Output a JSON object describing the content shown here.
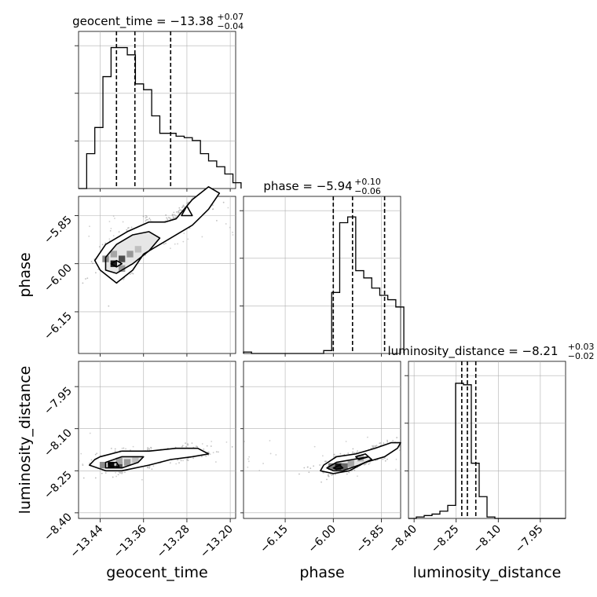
{
  "chart_data": {
    "type": "corner",
    "parameters": [
      {
        "name": "geocent_time",
        "ticks": [
          -13.44,
          -13.36,
          -13.28,
          -13.2
        ],
        "tick_labels": [
          "−13.44",
          "−13.36",
          "−13.28",
          "−13.20"
        ],
        "range": [
          -13.48,
          -13.19
        ],
        "title_prefix": "geocent_time = −13.38",
        "title_sup": "+0.07",
        "title_sub": "−0.04",
        "quantiles": [
          -13.41,
          -13.376,
          -13.31
        ],
        "hist_x": [
          -13.48,
          -13.465,
          -13.45,
          -13.435,
          -13.42,
          -13.405,
          -13.39,
          -13.375,
          -13.36,
          -13.345,
          -13.33,
          -13.315,
          -13.3,
          -13.285,
          -13.27,
          -13.255,
          -13.24,
          -13.225,
          -13.21,
          -13.195
        ],
        "hist_counts": [
          0,
          0.24,
          0.42,
          0.77,
          0.97,
          0.97,
          0.92,
          0.72,
          0.68,
          0.5,
          0.38,
          0.38,
          0.36,
          0.35,
          0.33,
          0.24,
          0.19,
          0.15,
          0.1,
          0.04
        ]
      },
      {
        "name": "phase",
        "ticks": [
          -6.15,
          -6.0,
          -5.85
        ],
        "tick_labels": [
          "−6.15",
          "−6.00",
          "−5.85"
        ],
        "range": [
          -6.28,
          -5.79
        ],
        "title_prefix": "phase = −5.94",
        "title_sup": "+0.10",
        "title_sub": "−0.06",
        "quantiles": [
          -6.0,
          -5.94,
          -5.84
        ],
        "hist_x": [
          -6.28,
          -6.255,
          -6.23,
          -6.205,
          -6.18,
          -6.155,
          -6.13,
          -6.105,
          -6.08,
          -6.055,
          -6.03,
          -6.005,
          -5.98,
          -5.955,
          -5.93,
          -5.905,
          -5.88,
          -5.855,
          -5.83,
          -5.805
        ],
        "hist_counts": [
          0.01,
          0,
          0,
          0,
          0,
          0,
          0,
          0,
          0,
          0,
          0.02,
          0.42,
          0.9,
          0.94,
          0.57,
          0.52,
          0.45,
          0.4,
          0.37,
          0.32
        ]
      },
      {
        "name": "luminosity_distance",
        "ticks": [
          -8.4,
          -8.25,
          -8.1,
          -7.95
        ],
        "tick_labels": [
          "−8.40",
          "−8.25",
          "−8.10",
          "−7.95"
        ],
        "range": [
          -8.42,
          -7.86
        ],
        "title_prefix": "luminosity_distance = −8.21",
        "title_sup": "+0.03",
        "title_sub": "−0.02",
        "quantiles": [
          -8.23,
          -8.21,
          -8.18
        ],
        "hist_x": [
          -8.42,
          -8.392,
          -8.364,
          -8.336,
          -8.308,
          -8.28,
          -8.252,
          -8.224,
          -8.196,
          -8.168,
          -8.14,
          -8.112,
          -8.084,
          -8.056,
          -8.028,
          -8.0,
          -7.972,
          -7.944,
          -7.916,
          -7.888
        ],
        "hist_counts": [
          0,
          0.01,
          0.02,
          0.03,
          0.05,
          0.09,
          0.93,
          0.92,
          0.38,
          0.15,
          0.01,
          0,
          0,
          0,
          0,
          0,
          0,
          0,
          0,
          0
        ]
      }
    ],
    "axis_labels": {
      "x": [
        "geocent_time",
        "phase",
        "luminosity_distance"
      ],
      "y": [
        "phase",
        "luminosity_distance"
      ]
    },
    "joint": [
      {
        "x_param": 0,
        "y_param": 1,
        "center": [
          -13.41,
          -6.0
        ],
        "contours": [
          [
            [
              -13.44,
              -6.02
            ],
            [
              -13.45,
              -5.99
            ],
            [
              -13.43,
              -5.94
            ],
            [
              -13.39,
              -5.9
            ],
            [
              -13.35,
              -5.87
            ],
            [
              -13.32,
              -5.87
            ],
            [
              -13.3,
              -5.86
            ],
            [
              -13.27,
              -5.8
            ],
            [
              -13.24,
              -5.76
            ],
            [
              -13.22,
              -5.78
            ],
            [
              -13.24,
              -5.83
            ],
            [
              -13.27,
              -5.88
            ],
            [
              -13.32,
              -5.93
            ],
            [
              -13.36,
              -5.97
            ],
            [
              -13.38,
              -6.02
            ],
            [
              -13.41,
              -6.06
            ]
          ],
          [
            [
              -13.43,
              -6.02
            ],
            [
              -13.43,
              -5.98
            ],
            [
              -13.41,
              -5.94
            ],
            [
              -13.38,
              -5.91
            ],
            [
              -13.35,
              -5.9
            ],
            [
              -13.33,
              -5.92
            ],
            [
              -13.35,
              -5.96
            ],
            [
              -13.38,
              -6.0
            ],
            [
              -13.41,
              -6.03
            ]
          ],
          [
            [
              -13.42,
              -6.0
            ],
            [
              -13.41,
              -5.99
            ],
            [
              -13.4,
              -6.0
            ],
            [
              -13.41,
              -6.01
            ]
          ],
          [
            [
              -13.29,
              -5.85
            ],
            [
              -13.28,
              -5.82
            ],
            [
              -13.27,
              -5.85
            ]
          ]
        ],
        "density_cells": [
          [
            -13.415,
            -6.0,
            0.9
          ],
          [
            -13.4,
            -5.985,
            0.7
          ],
          [
            -13.43,
            -5.985,
            0.45
          ],
          [
            -13.385,
            -5.97,
            0.4
          ],
          [
            -13.415,
            -5.97,
            0.35
          ],
          [
            -13.37,
            -5.955,
            0.25
          ],
          [
            -13.4,
            -6.015,
            0.4
          ]
        ]
      },
      {
        "x_param": 0,
        "y_param": 2,
        "center": [
          -13.42,
          -8.22
        ],
        "contours": [
          [
            [
              -13.44,
              -8.2
            ],
            [
              -13.4,
              -8.18
            ],
            [
              -13.35,
              -8.18
            ],
            [
              -13.3,
              -8.17
            ],
            [
              -13.26,
              -8.17
            ],
            [
              -13.24,
              -8.19
            ],
            [
              -13.27,
              -8.2
            ],
            [
              -13.31,
              -8.21
            ],
            [
              -13.35,
              -8.23
            ],
            [
              -13.4,
              -8.25
            ],
            [
              -13.43,
              -8.25
            ],
            [
              -13.46,
              -8.23
            ],
            [
              -13.45,
              -8.21
            ]
          ],
          [
            [
              -13.43,
              -8.22
            ],
            [
              -13.4,
              -8.2
            ],
            [
              -13.36,
              -8.2
            ],
            [
              -13.37,
              -8.22
            ],
            [
              -13.4,
              -8.24
            ],
            [
              -13.43,
              -8.24
            ]
          ],
          [
            [
              -13.425,
              -8.225
            ],
            [
              -13.41,
              -8.22
            ],
            [
              -13.405,
              -8.235
            ],
            [
              -13.42,
              -8.235
            ]
          ]
        ],
        "density_cells": [
          [
            -13.42,
            -8.23,
            0.95
          ],
          [
            -13.405,
            -8.23,
            0.7
          ],
          [
            -13.39,
            -8.22,
            0.4
          ],
          [
            -13.435,
            -8.23,
            0.45
          ],
          [
            -13.405,
            -8.215,
            0.35
          ],
          [
            -13.375,
            -8.21,
            0.25
          ]
        ]
      },
      {
        "x_param": 1,
        "y_param": 2,
        "center": [
          -5.98,
          -8.23
        ],
        "contours": [
          [
            [
              -6.04,
              -8.25
            ],
            [
              -6.03,
              -8.23
            ],
            [
              -5.99,
              -8.2
            ],
            [
              -5.93,
              -8.19
            ],
            [
              -5.87,
              -8.17
            ],
            [
              -5.82,
              -8.15
            ],
            [
              -5.79,
              -8.15
            ],
            [
              -5.8,
              -8.17
            ],
            [
              -5.84,
              -8.2
            ],
            [
              -5.9,
              -8.22
            ],
            [
              -5.95,
              -8.25
            ],
            [
              -6.0,
              -8.26
            ]
          ],
          [
            [
              -6.02,
              -8.24
            ],
            [
              -5.99,
              -8.22
            ],
            [
              -5.94,
              -8.21
            ],
            [
              -5.89,
              -8.2
            ],
            [
              -5.88,
              -8.21
            ],
            [
              -5.92,
              -8.23
            ],
            [
              -5.97,
              -8.25
            ],
            [
              -6.0,
              -8.25
            ]
          ],
          [
            [
              -5.93,
              -8.2
            ],
            [
              -5.9,
              -8.19
            ],
            [
              -5.89,
              -8.2
            ],
            [
              -5.92,
              -8.21
            ]
          ],
          [
            [
              -6.0,
              -8.24
            ],
            [
              -5.98,
              -8.23
            ],
            [
              -5.97,
              -8.24
            ],
            [
              -5.99,
              -8.245
            ]
          ]
        ],
        "density_cells": [
          [
            -5.985,
            -8.235,
            0.9
          ],
          [
            -5.965,
            -8.235,
            0.6
          ],
          [
            -6.005,
            -8.235,
            0.5
          ],
          [
            -5.945,
            -8.225,
            0.35
          ],
          [
            -5.915,
            -8.205,
            0.3
          ]
        ]
      }
    ],
    "grid": true
  }
}
